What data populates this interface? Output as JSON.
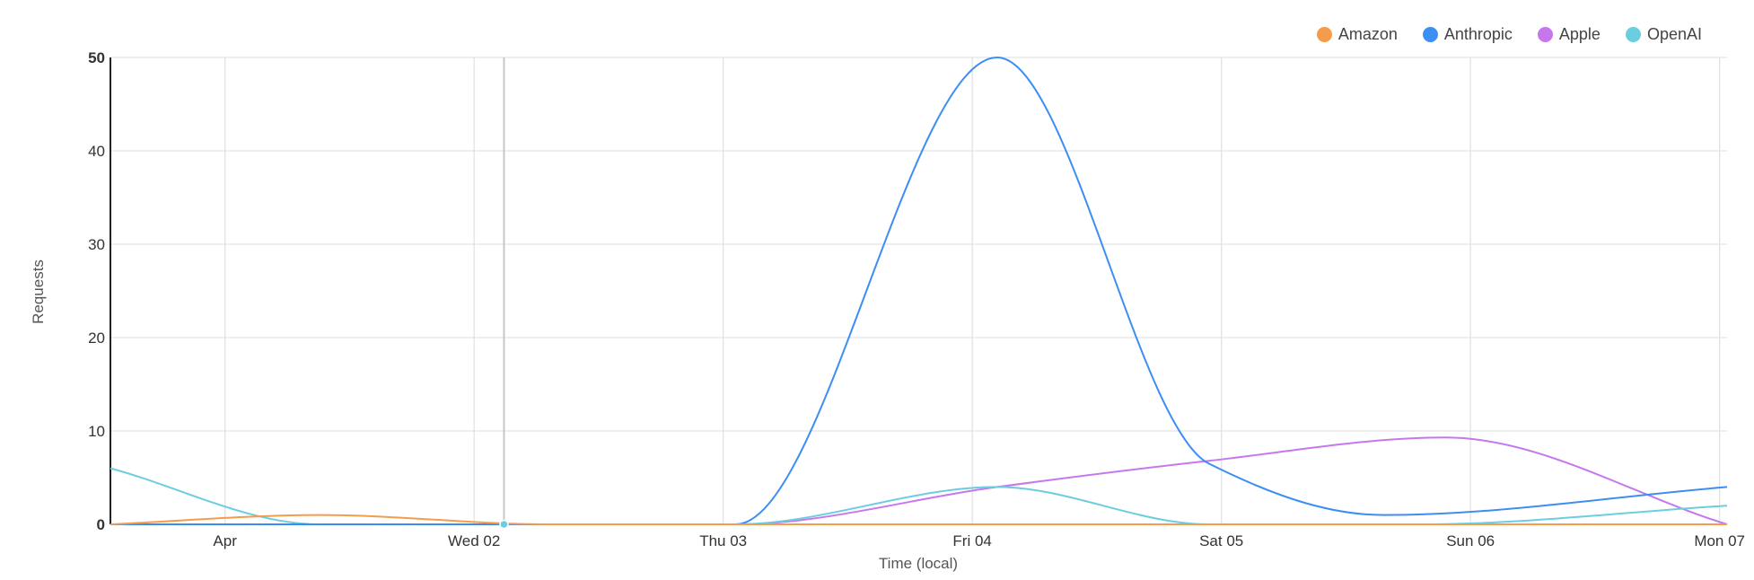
{
  "chart_data": {
    "type": "line",
    "ylabel": "Requests",
    "xlabel": "Time (local)",
    "ylim": [
      0,
      50
    ],
    "y_ticks": [
      0,
      10,
      20,
      30,
      40,
      50
    ],
    "x_ticks": [
      "Apr",
      "Wed 02",
      "Thu 03",
      "Fri 04",
      "Sat 05",
      "Sun 06",
      "Mon 07"
    ],
    "x_range_days": [
      0.54,
      7.03
    ],
    "grid": true,
    "legend_position": "top-right",
    "series": [
      {
        "name": "Amazon",
        "color": "#f59b4c",
        "points": [
          [
            0.54,
            0
          ],
          [
            1.38,
            1
          ],
          [
            2.3,
            0
          ],
          [
            3.3,
            0
          ],
          [
            4.3,
            0
          ],
          [
            5.3,
            0
          ],
          [
            6.3,
            0
          ],
          [
            7.03,
            0
          ]
        ]
      },
      {
        "name": "Anthropic",
        "color": "#3d8ef2",
        "points": [
          [
            0.54,
            0
          ],
          [
            1.5,
            0
          ],
          [
            2.5,
            0
          ],
          [
            3.05,
            0
          ],
          [
            4.1,
            50
          ],
          [
            4.95,
            6.5
          ],
          [
            5.65,
            1
          ],
          [
            7.03,
            4
          ]
        ]
      },
      {
        "name": "Apple",
        "color": "#c777ec",
        "points": [
          [
            0.54,
            0
          ],
          [
            1.5,
            0
          ],
          [
            2.5,
            0
          ],
          [
            3.05,
            0
          ],
          [
            4.1,
            4
          ],
          [
            4.95,
            6.8
          ],
          [
            5.9,
            9.3
          ],
          [
            7.03,
            0
          ]
        ]
      },
      {
        "name": "OpenAI",
        "color": "#6ccde0",
        "points": [
          [
            0.54,
            6
          ],
          [
            1.38,
            0
          ],
          [
            2.5,
            0
          ],
          [
            3.05,
            0
          ],
          [
            4.1,
            4
          ],
          [
            4.95,
            0
          ],
          [
            5.8,
            0
          ],
          [
            7.03,
            2
          ]
        ]
      }
    ],
    "hover": {
      "x": 2.12,
      "y": 0
    }
  }
}
